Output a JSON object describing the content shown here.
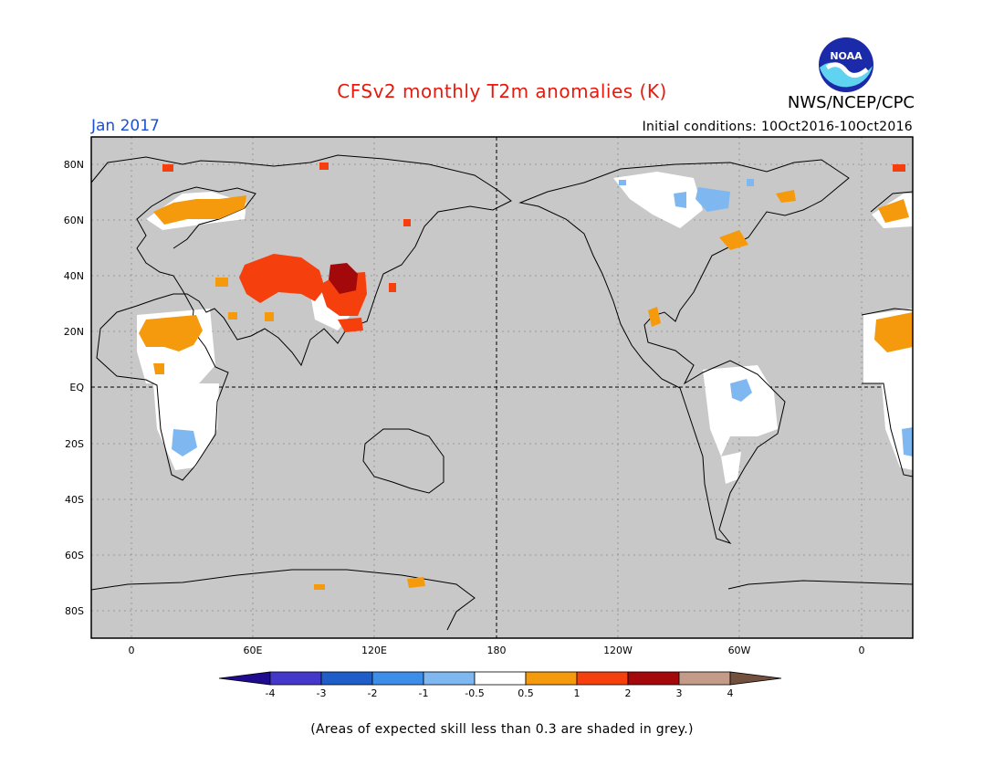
{
  "title": "CFSv2 monthly T2m anomalies (K)",
  "organization": "NWS/NCEP/CPC",
  "logo_text": "NOAA",
  "valid_month": "Jan 2017",
  "initial_conditions": "Initial conditions: 10Oct2016-10Oct2016",
  "footnote": "(Areas of expected skill less than 0.3 are shaded in grey.)",
  "colors": {
    "title": "#e8190c",
    "month": "#1a4fd6",
    "no_skill_grey": "#c8c8c8",
    "neutral_white": "#ffffff"
  },
  "map": {
    "lat_labels": [
      "80N",
      "60N",
      "40N",
      "20N",
      "EQ",
      "20S",
      "40S",
      "60S",
      "80S"
    ],
    "lon_labels": [
      "0",
      "60E",
      "120E",
      "180",
      "120W",
      "60W",
      "0"
    ]
  },
  "colorbar": {
    "tick_labels": [
      "-4",
      "-3",
      "-2",
      "-1",
      "-0.5",
      "0.5",
      "1",
      "2",
      "3",
      "4"
    ],
    "bins": [
      {
        "range": "< -4",
        "color": "#1f0b8f"
      },
      {
        "range": "-4 to -3",
        "color": "#4338c9"
      },
      {
        "range": "-3 to -2",
        "color": "#1f5ec9"
      },
      {
        "range": "-2 to -1",
        "color": "#3c8ee8"
      },
      {
        "range": "-1 to -0.5",
        "color": "#7fb8f0"
      },
      {
        "range": "-0.5 to 0.5",
        "color": "#ffffff"
      },
      {
        "range": "0.5 to 1",
        "color": "#f59a0c"
      },
      {
        "range": "1 to 2",
        "color": "#f53f0c"
      },
      {
        "range": "2 to 3",
        "color": "#a3080a"
      },
      {
        "range": "3 to 4",
        "color": "#c49a88"
      },
      {
        "range": "> 4",
        "color": "#73503e"
      }
    ]
  },
  "anomaly_regions": [
    {
      "region": "Central Asia",
      "level": "1 to 2"
    },
    {
      "region": "North China",
      "level": "2 to 3"
    },
    {
      "region": "Sahara / Arabia",
      "level": "0.5 to 1"
    },
    {
      "region": "Scandinavia / NW Russia",
      "level": "0.5 to 1"
    },
    {
      "region": "Eastern Canada",
      "level": "0.5 to 1"
    },
    {
      "region": "Greenland coast",
      "level": "0.5 to 1"
    },
    {
      "region": "Mexico",
      "level": "0.5 to 1"
    },
    {
      "region": "Antarctica coast",
      "level": "0.5 to 1"
    },
    {
      "region": "Canadian Arctic",
      "level": "-1 to -0.5"
    },
    {
      "region": "Amazon",
      "level": "-1 to -0.5"
    },
    {
      "region": "Southern Africa",
      "level": "-1 to -0.5"
    }
  ]
}
